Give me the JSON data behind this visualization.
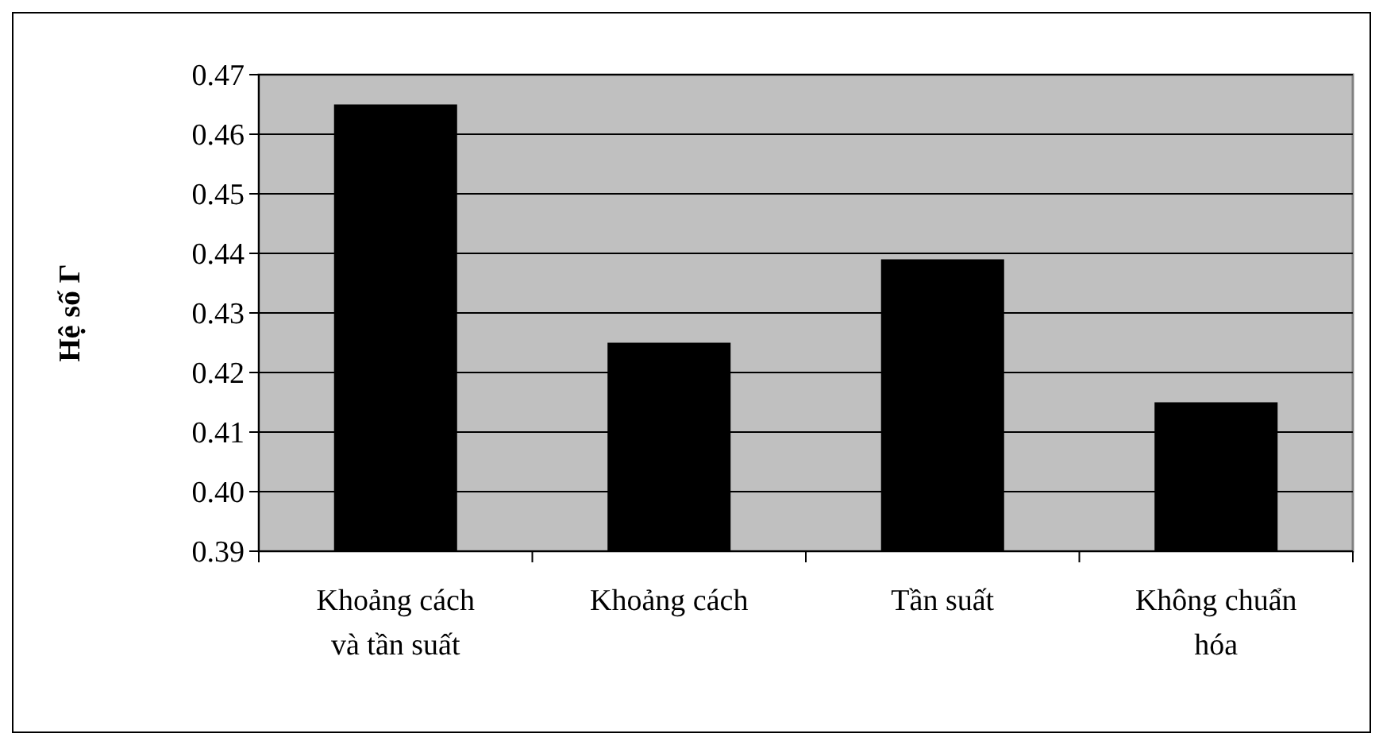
{
  "chart_data": {
    "type": "bar",
    "ylabel": "Hệ số Γ",
    "categories": [
      "Khoảng cách và tần suất",
      "Khoảng cách",
      "Tần suất",
      "Không chuẩn hóa"
    ],
    "values": [
      0.465,
      0.425,
      0.439,
      0.415
    ],
    "color": "#000000",
    "ylim": [
      0.39,
      0.47
    ],
    "yticks": [
      {
        "value": 0.39,
        "label": "0.39"
      },
      {
        "value": 0.4,
        "label": "0.40"
      },
      {
        "value": 0.41,
        "label": "0.41"
      },
      {
        "value": 0.42,
        "label": "0.42"
      },
      {
        "value": 0.43,
        "label": "0.43"
      },
      {
        "value": 0.44,
        "label": "0.44"
      },
      {
        "value": 0.45,
        "label": "0.45"
      },
      {
        "value": 0.46,
        "label": "0.46"
      },
      {
        "value": 0.47,
        "label": "0.47"
      }
    ],
    "grid": "y"
  }
}
